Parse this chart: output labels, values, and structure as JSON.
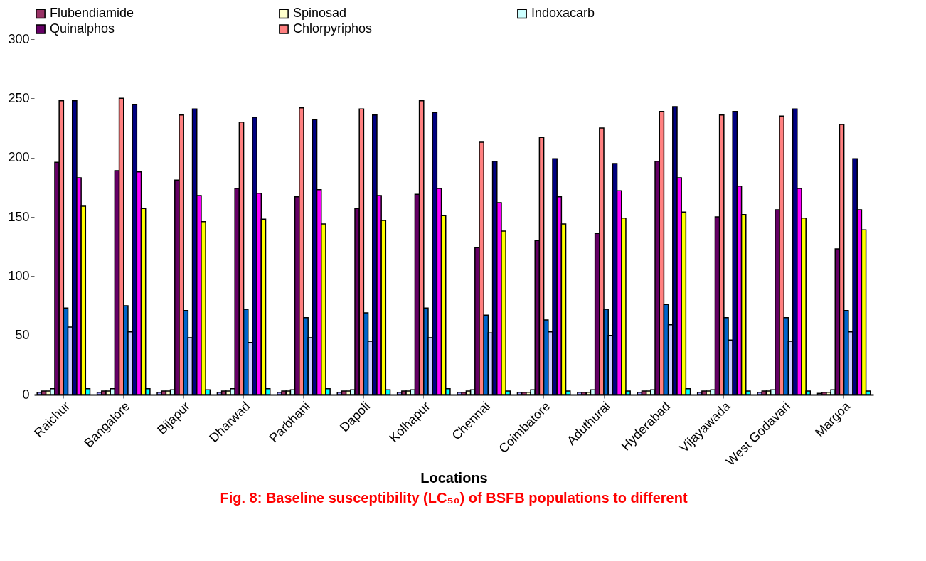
{
  "chart_data": {
    "type": "bar",
    "title": "Fig. 8: Baseline susceptibility (LC₅₀) of BSFB populations to different",
    "xlabel": "Locations",
    "categories": [
      "Raichur",
      "Bangalore",
      "Bijapur",
      "Dharwad",
      "Parbhani",
      "Dapoli",
      "Kolhapur",
      "Chennai",
      "Coimbatore",
      "Aduthurai",
      "Hyderabad",
      "Vijayawada",
      "West Godavari",
      "Margoa"
    ],
    "series": [
      {
        "color": "#9999ff",
        "values": [
          2,
          2,
          2,
          2,
          2,
          2,
          2,
          2,
          2,
          2,
          2,
          2,
          2,
          1
        ]
      },
      {
        "name": "Flubendiamide",
        "color": "#993366",
        "values": [
          3,
          3,
          3,
          3,
          3,
          3,
          3,
          2,
          2,
          2,
          3,
          3,
          3,
          2
        ]
      },
      {
        "name": "Spinosad",
        "color": "#ffffcc",
        "values": [
          3,
          3,
          3,
          3,
          3,
          3,
          3,
          3,
          2,
          2,
          3,
          3,
          3,
          2
        ]
      },
      {
        "name": "Indoxacarb",
        "color": "#ccffff",
        "values": [
          5,
          5,
          4,
          5,
          4,
          4,
          4,
          4,
          4,
          4,
          4,
          4,
          4,
          4
        ]
      },
      {
        "name": "Quinalphos",
        "color": "#660066",
        "values": [
          196,
          189,
          181,
          174,
          167,
          157,
          169,
          124,
          130,
          136,
          197,
          150,
          156,
          123
        ]
      },
      {
        "name": "Chlorpyriphos",
        "color": "#ff8080",
        "values": [
          248,
          250,
          236,
          230,
          242,
          241,
          248,
          213,
          217,
          225,
          239,
          236,
          235,
          228
        ]
      },
      {
        "color": "#0066cc",
        "values": [
          73,
          75,
          71,
          72,
          65,
          69,
          73,
          67,
          63,
          72,
          76,
          65,
          65,
          71
        ]
      },
      {
        "color": "#ccccff",
        "values": [
          57,
          53,
          48,
          44,
          48,
          45,
          48,
          52,
          53,
          50,
          59,
          46,
          45,
          53
        ]
      },
      {
        "color": "#000080",
        "values": [
          248,
          245,
          241,
          234,
          232,
          236,
          238,
          197,
          199,
          195,
          243,
          239,
          241,
          199
        ]
      },
      {
        "color": "#ff00ff",
        "values": [
          183,
          188,
          168,
          170,
          173,
          168,
          174,
          162,
          167,
          172,
          183,
          176,
          174,
          156
        ]
      },
      {
        "color": "#ffff00",
        "values": [
          159,
          157,
          146,
          148,
          144,
          147,
          151,
          138,
          144,
          149,
          154,
          152,
          149,
          139
        ]
      },
      {
        "color": "#00ffff",
        "values": [
          5,
          5,
          4,
          5,
          5,
          4,
          5,
          3,
          3,
          3,
          5,
          3,
          3,
          3
        ]
      }
    ],
    "ylim": [
      0,
      300
    ],
    "yticks": [
      0,
      50,
      100,
      150,
      200,
      250,
      300
    ],
    "grid": false,
    "legend": "top"
  }
}
